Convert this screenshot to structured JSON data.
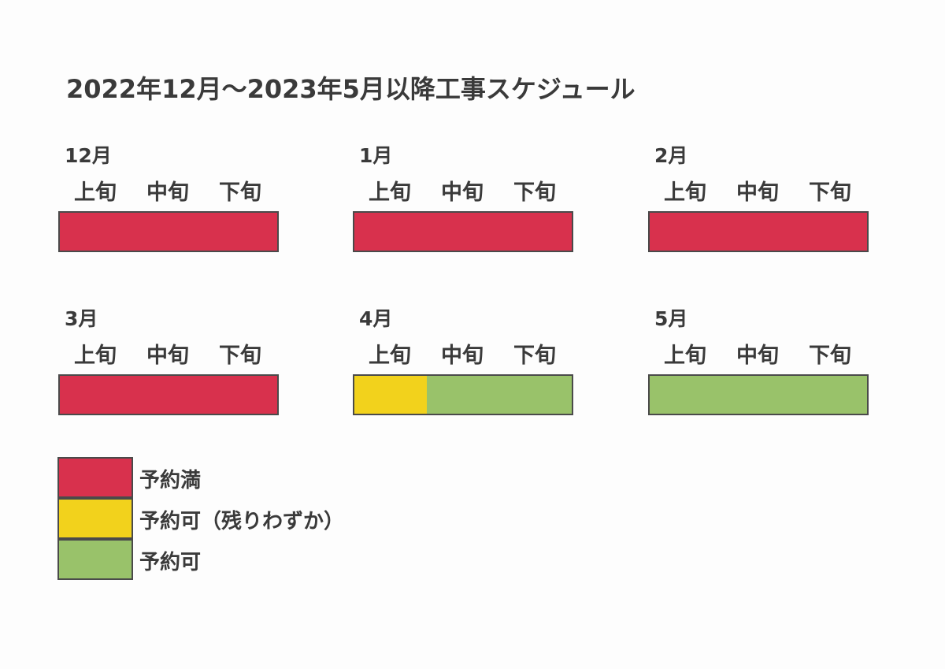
{
  "title": "2022年12月～2023年5月以降工事スケジュール",
  "colors": {
    "full": "#d8314d",
    "few": "#f2d21c",
    "available": "#99c26a"
  },
  "period_labels": [
    "上旬",
    "中旬",
    "下旬"
  ],
  "months": [
    {
      "label": "12月",
      "status": [
        "full",
        "full",
        "full"
      ]
    },
    {
      "label": "1月",
      "status": [
        "full",
        "full",
        "full"
      ]
    },
    {
      "label": "2月",
      "status": [
        "full",
        "full",
        "full"
      ]
    },
    {
      "label": "3月",
      "status": [
        "full",
        "full",
        "full"
      ]
    },
    {
      "label": "4月",
      "status": [
        "few",
        "available",
        "available"
      ]
    },
    {
      "label": "5月",
      "status": [
        "available",
        "available",
        "available"
      ]
    }
  ],
  "legend": [
    {
      "key": "full",
      "label": "予約満"
    },
    {
      "key": "few",
      "label": "予約可（残りわずか）"
    },
    {
      "key": "available",
      "label": "予約可"
    }
  ]
}
